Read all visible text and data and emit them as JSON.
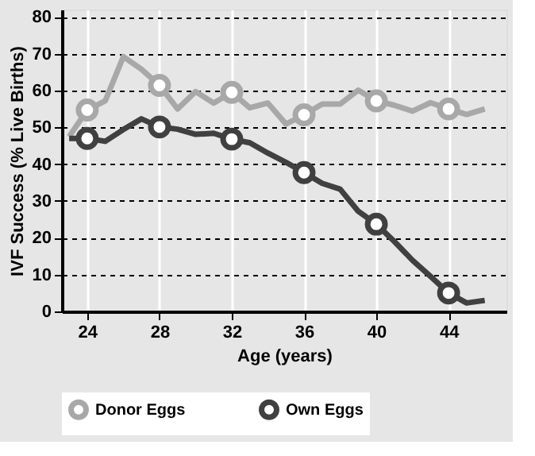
{
  "chart_data": {
    "type": "line",
    "xlabel": "Age (years)",
    "ylabel": "IVF Success (% Live Births)",
    "x": [
      23,
      24,
      25,
      26,
      27,
      28,
      29,
      30,
      31,
      32,
      33,
      34,
      35,
      36,
      37,
      38,
      39,
      40,
      41,
      42,
      43,
      44,
      45,
      46
    ],
    "series": [
      {
        "name": "Donor Eggs",
        "color": "#a8a8a8",
        "values": [
          47.5,
          54.7,
          57.2,
          69.2,
          65.8,
          61.4,
          55,
          59.7,
          56.6,
          59.5,
          55.3,
          56.6,
          50.9,
          53.4,
          56.3,
          56.3,
          60.1,
          57.2,
          56,
          54.4,
          56.7,
          55,
          53.5,
          55
        ]
      },
      {
        "name": "Own Eggs",
        "color": "#404040",
        "values": [
          47,
          47,
          46.2,
          49.4,
          52.3,
          50.1,
          49.5,
          48.1,
          48.4,
          46.8,
          45.8,
          43,
          40.5,
          37.7,
          34.8,
          33.2,
          27.2,
          23.7,
          19,
          13.9,
          9.5,
          5,
          2.3,
          3
        ]
      },
      {
        "type": "scatter",
        "marker": "circle",
        "color": "#a8a8a8",
        "x": [
          24,
          28,
          32,
          36,
          40,
          44
        ],
        "values": [
          54.7,
          61.4,
          59.5,
          53.4,
          57.2,
          55
        ]
      },
      {
        "type": "scatter",
        "marker": "circle",
        "color": "#404040",
        "x": [
          24,
          28,
          32,
          36,
          40,
          44
        ],
        "values": [
          47,
          50.1,
          46.8,
          37.7,
          23.7,
          5
        ]
      }
    ],
    "xlim": [
      22.6,
      47.2
    ],
    "xticks": [
      24,
      28,
      32,
      36,
      40,
      44
    ],
    "ylim": [
      0,
      82
    ],
    "yticks": [
      0,
      10,
      20,
      30,
      40,
      50,
      60,
      70,
      80
    ],
    "grid": true,
    "legend": "bottom"
  }
}
